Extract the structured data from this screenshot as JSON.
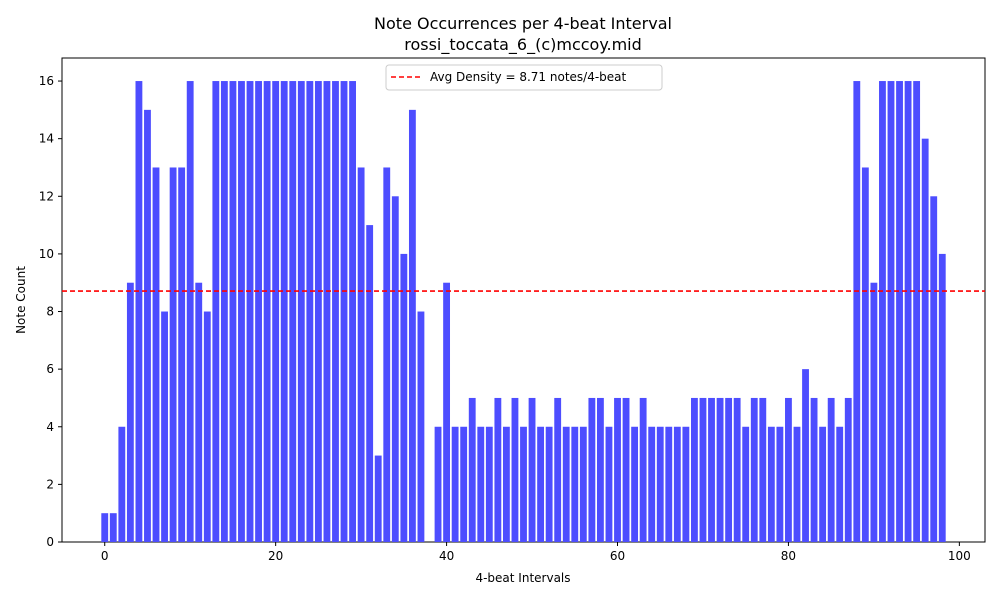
{
  "chart_data": {
    "type": "bar",
    "title": "Note Occurrences per 4-beat Interval",
    "subtitle": "rossi_toccata_6_(c)mccoy.mid",
    "xlabel": "4-beat Intervals",
    "ylabel": "Note Count",
    "xlim": [
      -5,
      103
    ],
    "ylim": [
      0,
      16.8
    ],
    "x_ticks": [
      0,
      20,
      40,
      60,
      80,
      100
    ],
    "y_ticks": [
      0,
      2,
      4,
      6,
      8,
      10,
      12,
      14,
      16
    ],
    "bar_color": "#4d4dff",
    "x": [
      0,
      1,
      2,
      3,
      4,
      5,
      6,
      7,
      8,
      9,
      10,
      11,
      12,
      13,
      14,
      15,
      16,
      17,
      18,
      19,
      20,
      21,
      22,
      23,
      24,
      25,
      26,
      27,
      28,
      29,
      30,
      31,
      32,
      33,
      34,
      35,
      36,
      37,
      38,
      39,
      40,
      41,
      42,
      43,
      44,
      45,
      46,
      47,
      48,
      49,
      50,
      51,
      52,
      53,
      54,
      55,
      56,
      57,
      58,
      59,
      60,
      61,
      62,
      63,
      64,
      65,
      66,
      67,
      68,
      69,
      70,
      71,
      72,
      73,
      74,
      75,
      76,
      77,
      78,
      79,
      80,
      81,
      82,
      83,
      84,
      85,
      86,
      87,
      88,
      89,
      90,
      91,
      92,
      93,
      94,
      95,
      96,
      97,
      98
    ],
    "values": [
      1,
      1,
      4,
      9,
      16,
      15,
      13,
      8,
      13,
      13,
      16,
      9,
      8,
      16,
      16,
      16,
      16,
      16,
      16,
      16,
      16,
      16,
      16,
      16,
      16,
      16,
      16,
      16,
      16,
      16,
      13,
      11,
      3,
      13,
      12,
      10,
      15,
      8,
      0,
      4,
      9,
      4,
      4,
      5,
      4,
      4,
      5,
      4,
      5,
      4,
      5,
      4,
      4,
      5,
      4,
      4,
      4,
      5,
      5,
      4,
      5,
      5,
      4,
      5,
      4,
      4,
      4,
      4,
      4,
      5,
      5,
      5,
      5,
      5,
      5,
      4,
      5,
      5,
      4,
      4,
      5,
      4,
      6,
      5,
      4,
      5,
      4,
      5,
      16,
      13,
      9,
      16,
      16,
      16,
      16,
      16,
      14,
      12,
      10
    ],
    "reference_line": {
      "y": 8.71,
      "color": "#ff0000",
      "style": "dashed",
      "label": "Avg Density = 8.71 notes/4-beat"
    },
    "legend_position": "top-center",
    "grid": false
  }
}
